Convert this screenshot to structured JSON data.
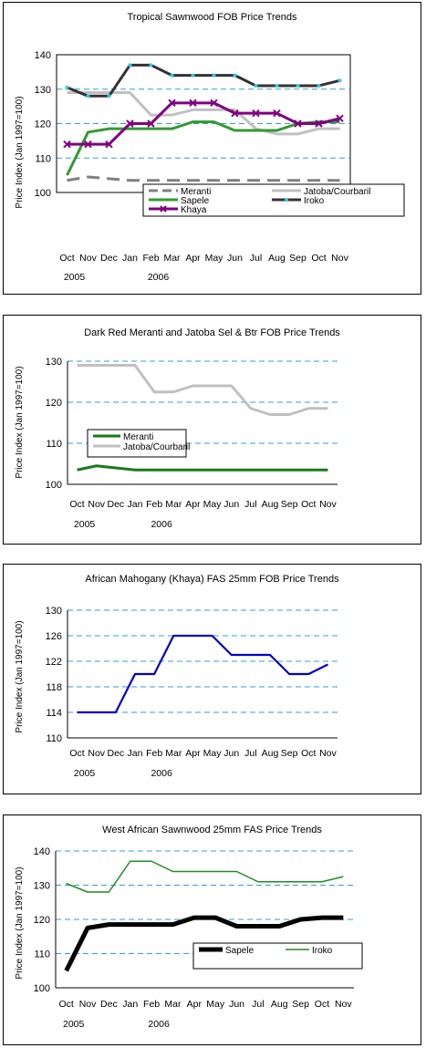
{
  "chart_data": [
    {
      "type": "line",
      "title": "Tropical Sawnwood FOB Price Trends",
      "xlabel": "",
      "ylabel": "Price Index (Jan 1997=100)",
      "categories": [
        "Oct",
        "Nov",
        "Dec",
        "Jan",
        "Feb",
        "Mar",
        "Apr",
        "May",
        "Jun",
        "Jul",
        "Aug",
        "Sep",
        "Oct",
        "Nov"
      ],
      "year_labels": [
        "2005",
        "2006"
      ],
      "ylim": [
        100,
        140
      ],
      "yticks": [
        100,
        110,
        120,
        130,
        140
      ],
      "grid": true,
      "legend_position": "inside-bottom-center",
      "series": [
        {
          "name": "Meranti",
          "color": "#808080",
          "style": "dashed",
          "values": [
            103.5,
            104.5,
            104,
            103.5,
            103.5,
            103.5,
            103.5,
            103.5,
            103.5,
            103.5,
            103.5,
            103.5,
            103.5,
            103.5
          ]
        },
        {
          "name": "Jatoba/Courbaril",
          "color": "#c0c0c0",
          "style": "solid",
          "values": [
            129,
            129,
            129,
            129,
            122.5,
            122.5,
            124,
            124,
            124,
            118.5,
            117,
            117,
            118.5,
            118.5
          ]
        },
        {
          "name": "Sapele",
          "color": "#339933",
          "style": "solid",
          "values": [
            105,
            117.5,
            118.5,
            118.5,
            118.5,
            118.5,
            120.5,
            120.5,
            118,
            118,
            118,
            120,
            120.5,
            120.5
          ]
        },
        {
          "name": "Iroko",
          "color": "#333333",
          "style": "solid",
          "marker": "dot",
          "values": [
            130.5,
            128,
            128,
            137,
            137,
            134,
            134,
            134,
            134,
            131,
            131,
            131,
            131,
            132.5
          ]
        },
        {
          "name": "Khaya",
          "color": "#800080",
          "style": "solid",
          "marker": "x",
          "values": [
            114,
            114,
            114,
            120,
            120,
            126,
            126,
            126,
            123,
            123,
            123,
            120,
            120,
            121.5
          ]
        }
      ]
    },
    {
      "type": "line",
      "title": "Dark Red Meranti and Jatoba Sel & Btr FOB Price Trends",
      "xlabel": "",
      "ylabel": "Price Index (Jan 1997=100)",
      "categories": [
        "Oct",
        "Nov",
        "Dec",
        "Jan",
        "Feb",
        "Mar",
        "Apr",
        "May",
        "Jun",
        "Jul",
        "Aug",
        "Sep",
        "Oct",
        "Nov"
      ],
      "year_labels": [
        "2005",
        "2006"
      ],
      "ylim": [
        100,
        130
      ],
      "yticks": [
        100,
        110,
        120,
        130
      ],
      "grid": true,
      "legend_position": "left",
      "series": [
        {
          "name": "Meranti",
          "color": "#1a7a1a",
          "style": "solid",
          "values": [
            103.5,
            104.5,
            104,
            103.5,
            103.5,
            103.5,
            103.5,
            103.5,
            103.5,
            103.5,
            103.5,
            103.5,
            103.5,
            103.5
          ]
        },
        {
          "name": "Jatoba/Courbaril",
          "color": "#c0c0c0",
          "style": "solid",
          "values": [
            129,
            129,
            129,
            129,
            122.5,
            122.5,
            124,
            124,
            124,
            118.5,
            117,
            117,
            118.5,
            118.5
          ]
        }
      ]
    },
    {
      "type": "line",
      "title": "African Mahogany (Khaya) FAS 25mm FOB Price Trends",
      "xlabel": "",
      "ylabel": "Price Index (Jan 1997=100)",
      "categories": [
        "Oct",
        "Nov",
        "Dec",
        "Jan",
        "Feb",
        "Mar",
        "Apr",
        "May",
        "Jun",
        "Jul",
        "Aug",
        "Sep",
        "Oct",
        "Nov"
      ],
      "year_labels": [
        "2005",
        "2006"
      ],
      "ylim": [
        110,
        130
      ],
      "yticks": [
        110,
        114,
        118,
        122,
        126,
        130
      ],
      "grid": true,
      "series": [
        {
          "name": "Khaya",
          "color": "#0000cc",
          "style": "solid",
          "values": [
            114,
            114,
            114,
            120,
            120,
            126,
            126,
            126,
            123,
            123,
            123,
            120,
            120,
            121.5
          ]
        }
      ]
    },
    {
      "type": "line",
      "title": "West African Sawnwood 25mm FAS Price Trends",
      "xlabel": "",
      "ylabel": "Price Index (Jan 1997=100)",
      "categories": [
        "Oct",
        "Nov",
        "Dec",
        "Jan",
        "Feb",
        "Mar",
        "Apr",
        "May",
        "Jun",
        "Jul",
        "Aug",
        "Sep",
        "Oct",
        "Nov"
      ],
      "year_labels": [
        "2005",
        "2006"
      ],
      "ylim": [
        100,
        140
      ],
      "yticks": [
        100,
        110,
        120,
        130,
        140
      ],
      "grid": true,
      "legend_position": "inside-bottom-right",
      "series": [
        {
          "name": "Sapele",
          "color": "#000000",
          "style": "thick",
          "values": [
            105,
            117.5,
            118.5,
            118.5,
            118.5,
            118.5,
            120.5,
            120.5,
            118,
            118,
            118,
            120,
            120.5,
            120.5
          ]
        },
        {
          "name": "Iroko",
          "color": "#228b22",
          "style": "solid",
          "values": [
            130.5,
            128,
            128,
            137,
            137,
            134,
            134,
            134,
            134,
            131,
            131,
            131,
            131,
            132.5
          ]
        }
      ]
    }
  ]
}
